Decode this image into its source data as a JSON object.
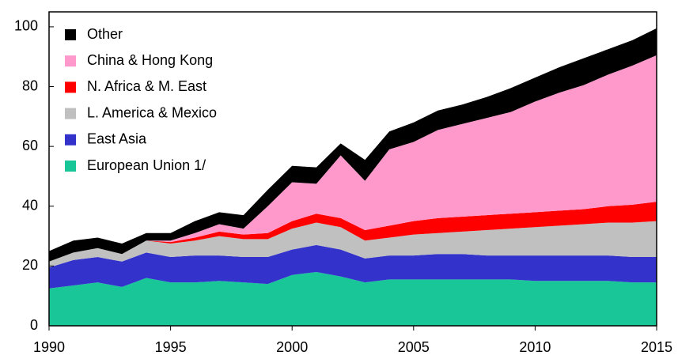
{
  "chart_data": {
    "type": "stacked_area",
    "x": [
      1990,
      1991,
      1992,
      1993,
      1994,
      1995,
      1996,
      1997,
      1998,
      1999,
      2000,
      2001,
      2002,
      2003,
      2004,
      2005,
      2006,
      2007,
      2008,
      2009,
      2010,
      2011,
      2012,
      2013,
      2014,
      2015
    ],
    "series": [
      {
        "name": "European Union 1/",
        "color": "#19c697",
        "values": [
          12.5,
          13.5,
          14.5,
          13,
          16,
          14.5,
          14.5,
          15,
          14.5,
          14,
          17,
          18,
          16.5,
          14.5,
          15.5,
          15.5,
          15.5,
          15.5,
          15.5,
          15.5,
          15,
          15,
          15,
          15,
          14.5,
          14.5
        ]
      },
      {
        "name": "East Asia",
        "color": "#3333cc",
        "values": [
          7,
          8.5,
          8.5,
          8.5,
          8.5,
          8.5,
          9,
          8.5,
          8.5,
          9,
          8.5,
          9,
          9,
          8,
          8,
          8,
          8.5,
          8.5,
          8,
          8,
          8.5,
          8.5,
          8.5,
          8.5,
          8.5,
          8.5
        ]
      },
      {
        "name": "L. America & Mexico",
        "color": "#c0c0c0",
        "values": [
          2,
          2.5,
          3,
          2.5,
          4,
          4.5,
          5,
          6.5,
          6,
          6,
          7,
          7.5,
          7.5,
          6,
          6,
          7,
          7,
          7.5,
          8.5,
          9,
          9.5,
          10,
          10.5,
          11,
          11.5,
          12
        ]
      },
      {
        "name": "N. Africa & M. East",
        "color": "#ff0000",
        "values": [
          0,
          0,
          0,
          0,
          0,
          0.5,
          1,
          1.5,
          1.5,
          2,
          2.5,
          3,
          3,
          3.5,
          4,
          4.5,
          5,
          5,
          5,
          5,
          5,
          5,
          5,
          5.5,
          6,
          6.5
        ]
      },
      {
        "name": "China & Hong Kong",
        "color": "#ff99cc",
        "values": [
          0,
          0,
          0,
          0,
          0,
          0.5,
          1.5,
          2.5,
          2,
          9,
          13,
          10,
          21,
          16.5,
          25.5,
          26.5,
          29.5,
          31,
          32.5,
          34,
          37,
          39.5,
          41.5,
          44,
          46.5,
          49
        ]
      },
      {
        "name": "Other",
        "color": "#000000",
        "values": [
          3.5,
          4,
          3.5,
          3.5,
          2.5,
          2.5,
          4,
          4,
          4.5,
          5.5,
          5.5,
          5.5,
          4,
          7,
          6,
          6.5,
          6.5,
          6.5,
          7,
          8,
          8,
          8.5,
          9,
          8.5,
          8.5,
          9
        ]
      }
    ],
    "xlim": [
      1990,
      2015
    ],
    "xticks": [
      1990,
      1995,
      2000,
      2005,
      2010,
      2015
    ],
    "ylim": [
      0,
      105
    ],
    "yticks": [
      0,
      20,
      40,
      60,
      80,
      100
    ],
    "legend": "upper-left"
  }
}
